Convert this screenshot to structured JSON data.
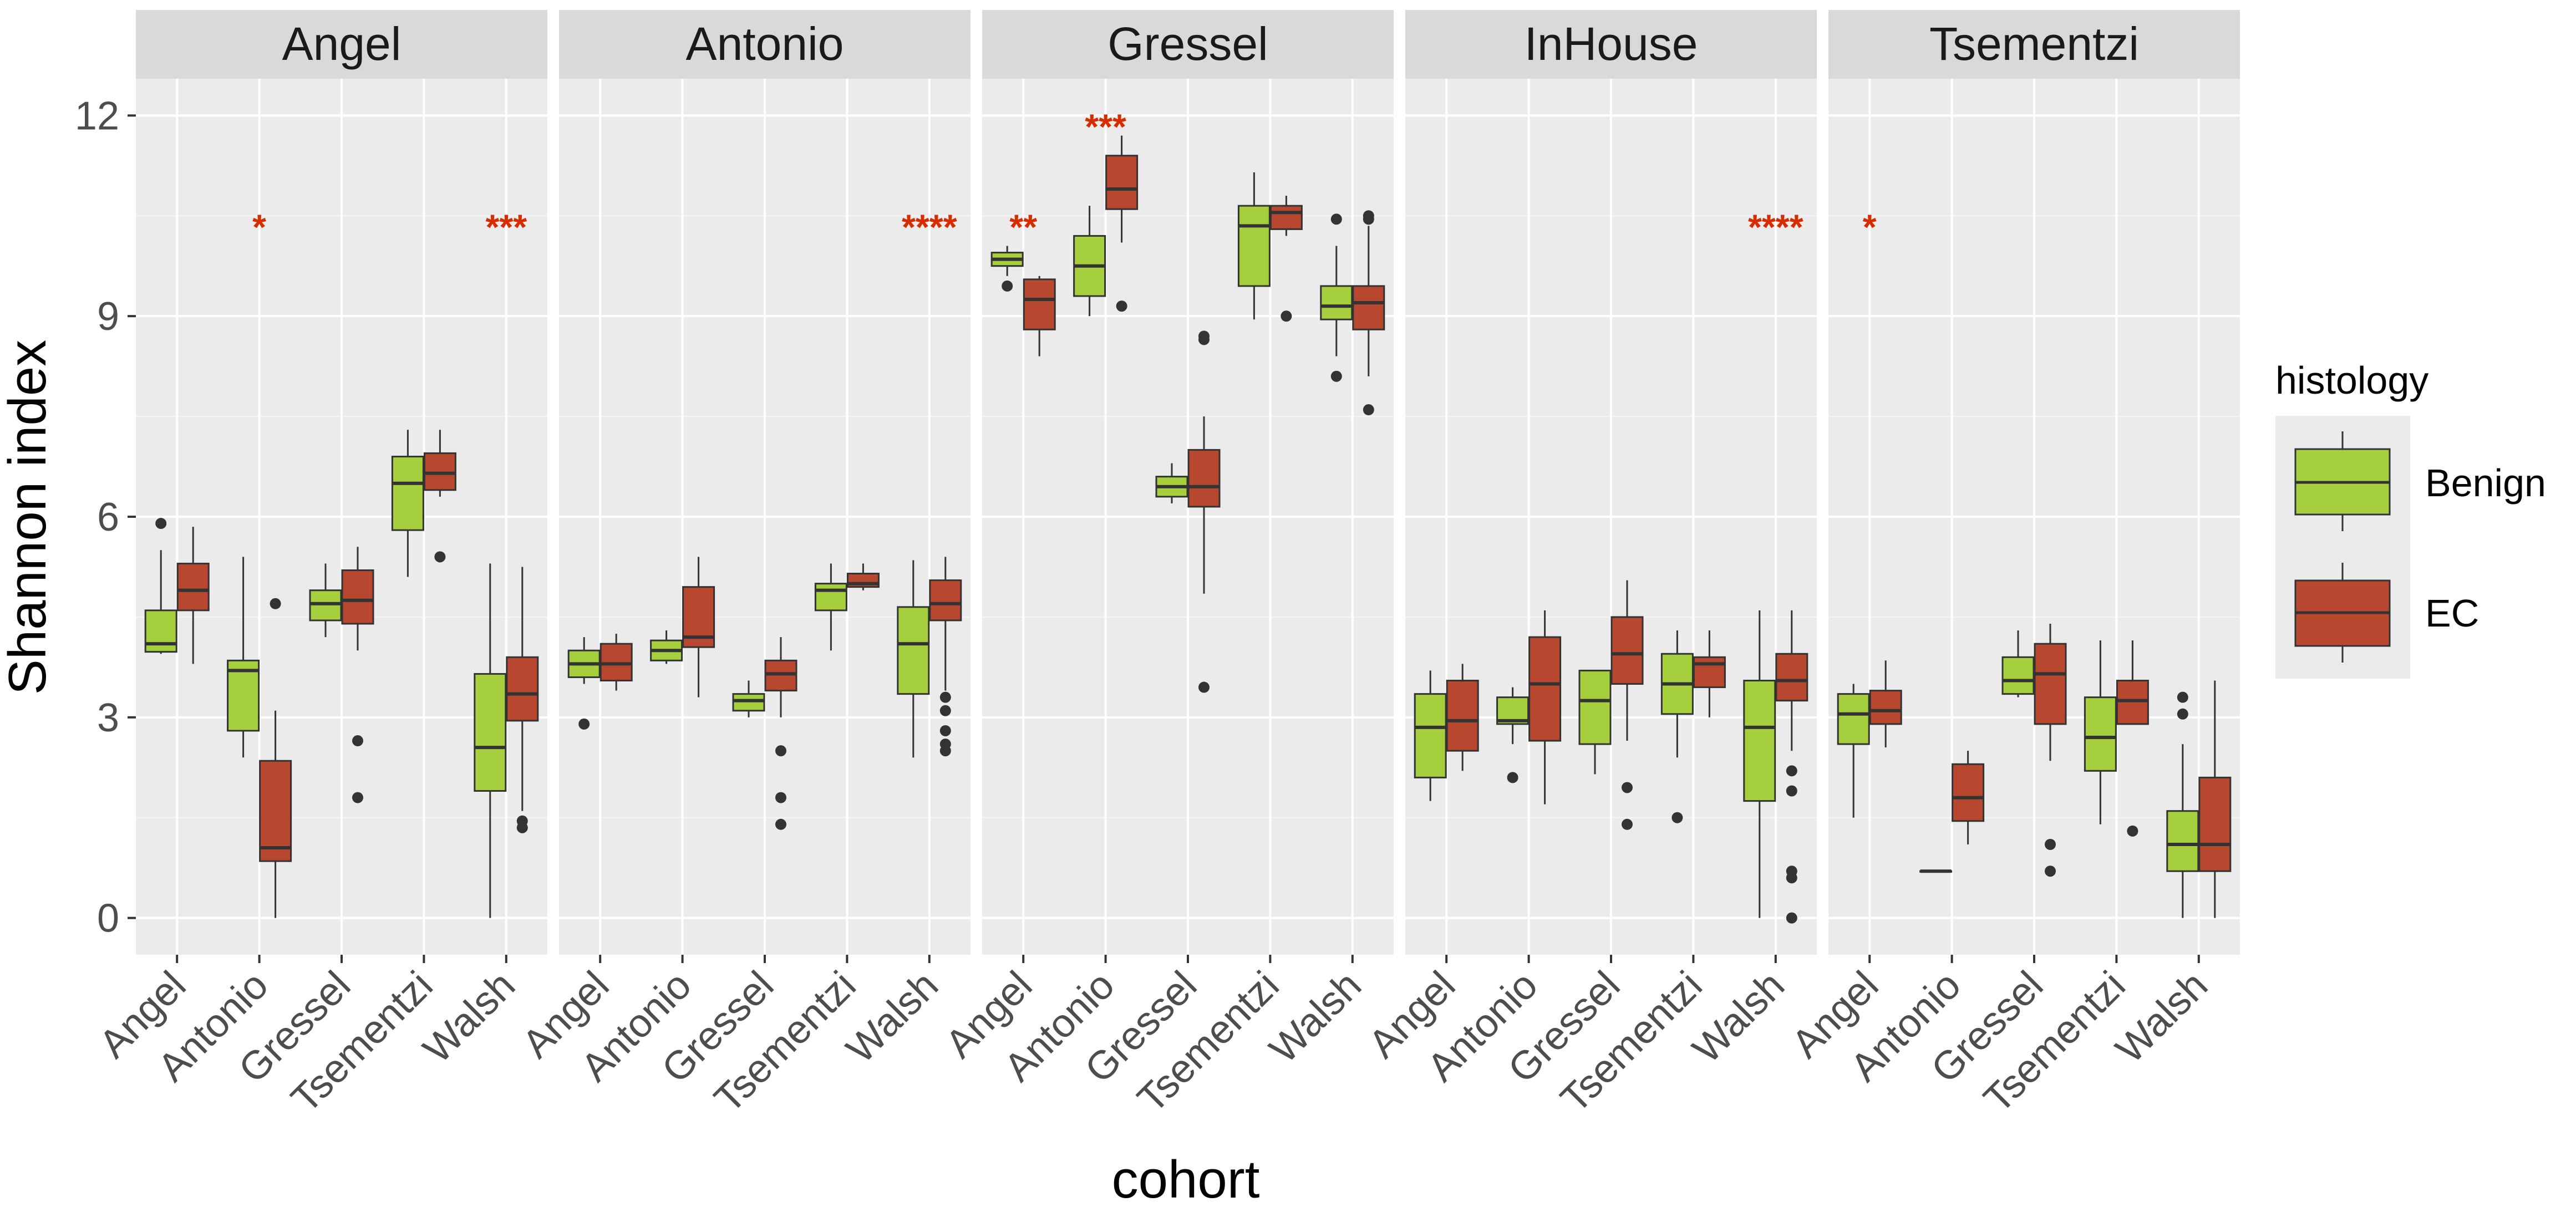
{
  "chart_data": {
    "type": "boxplot",
    "xlabel": "cohort",
    "ylabel": "Shannon index",
    "ylim": [
      -0.55,
      12.55
    ],
    "yticks": [
      0,
      3,
      6,
      9,
      12
    ],
    "grid": true,
    "legend": {
      "title": "histology",
      "position": "right",
      "entries": [
        {
          "name": "Benign",
          "color": "#a6cf3d"
        },
        {
          "name": "EC",
          "color": "#b8472f"
        }
      ]
    },
    "significance_color": "#d62d00",
    "categories": [
      "Angel",
      "Antonio",
      "Gressel",
      "Tsementzi",
      "Walsh"
    ],
    "panels": [
      {
        "title": "Angel",
        "groups": [
          {
            "cohort": "Angel",
            "sig": "",
            "benign": {
              "min": 3.95,
              "q1": 3.98,
              "median": 4.1,
              "q3": 4.6,
              "max": 5.5,
              "outliers": [
                5.9
              ]
            },
            "ec": {
              "min": 3.8,
              "q1": 4.6,
              "median": 4.9,
              "q3": 5.3,
              "max": 5.85,
              "outliers": []
            }
          },
          {
            "cohort": "Antonio",
            "sig": "*",
            "benign": {
              "min": 2.4,
              "q1": 2.8,
              "median": 3.7,
              "q3": 3.85,
              "max": 5.4,
              "outliers": []
            },
            "ec": {
              "min": 0.0,
              "q1": 0.85,
              "median": 1.05,
              "q3": 2.35,
              "max": 3.1,
              "outliers": [
                4.7
              ]
            }
          },
          {
            "cohort": "Gressel",
            "sig": "",
            "benign": {
              "min": 4.2,
              "q1": 4.45,
              "median": 4.7,
              "q3": 4.9,
              "max": 5.3,
              "outliers": []
            },
            "ec": {
              "min": 4.0,
              "q1": 4.4,
              "median": 4.75,
              "q3": 5.2,
              "max": 5.55,
              "outliers": [
                2.65,
                1.8
              ]
            }
          },
          {
            "cohort": "Tsementzi",
            "sig": "",
            "benign": {
              "min": 5.1,
              "q1": 5.8,
              "median": 6.5,
              "q3": 6.9,
              "max": 7.3,
              "outliers": []
            },
            "ec": {
              "min": 6.3,
              "q1": 6.4,
              "median": 6.65,
              "q3": 6.95,
              "max": 7.3,
              "outliers": [
                5.4
              ]
            }
          },
          {
            "cohort": "Walsh",
            "sig": "***",
            "benign": {
              "min": 0.0,
              "q1": 1.9,
              "median": 2.55,
              "q3": 3.65,
              "max": 5.3,
              "outliers": []
            },
            "ec": {
              "min": 1.6,
              "q1": 2.95,
              "median": 3.35,
              "q3": 3.9,
              "max": 5.25,
              "outliers": [
                1.45,
                1.35
              ]
            }
          }
        ]
      },
      {
        "title": "Antonio",
        "groups": [
          {
            "cohort": "Angel",
            "sig": "",
            "benign": {
              "min": 3.5,
              "q1": 3.6,
              "median": 3.8,
              "q3": 4.0,
              "max": 4.2,
              "outliers": [
                2.9
              ]
            },
            "ec": {
              "min": 3.4,
              "q1": 3.55,
              "median": 3.8,
              "q3": 4.1,
              "max": 4.25,
              "outliers": []
            }
          },
          {
            "cohort": "Antonio",
            "sig": "",
            "benign": {
              "min": 3.8,
              "q1": 3.85,
              "median": 4.0,
              "q3": 4.15,
              "max": 4.3,
              "outliers": []
            },
            "ec": {
              "min": 3.3,
              "q1": 4.05,
              "median": 4.2,
              "q3": 4.95,
              "max": 5.4,
              "outliers": []
            }
          },
          {
            "cohort": "Gressel",
            "sig": "",
            "benign": {
              "min": 3.0,
              "q1": 3.1,
              "median": 3.25,
              "q3": 3.35,
              "max": 3.55,
              "outliers": []
            },
            "ec": {
              "min": 3.0,
              "q1": 3.4,
              "median": 3.65,
              "q3": 3.85,
              "max": 4.2,
              "outliers": [
                2.5,
                1.8,
                1.4
              ]
            }
          },
          {
            "cohort": "Tsementzi",
            "sig": "",
            "benign": {
              "min": 4.0,
              "q1": 4.6,
              "median": 4.9,
              "q3": 5.0,
              "max": 5.3,
              "outliers": []
            },
            "ec": {
              "min": 4.9,
              "q1": 4.95,
              "median": 5.0,
              "q3": 5.15,
              "max": 5.3,
              "outliers": []
            }
          },
          {
            "cohort": "Walsh",
            "sig": "****",
            "benign": {
              "min": 2.4,
              "q1": 3.35,
              "median": 4.1,
              "q3": 4.65,
              "max": 5.35,
              "outliers": []
            },
            "ec": {
              "min": 3.4,
              "q1": 4.45,
              "median": 4.7,
              "q3": 5.05,
              "max": 5.4,
              "outliers": [
                3.3,
                3.1,
                2.8,
                2.6,
                2.5
              ]
            }
          }
        ]
      },
      {
        "title": "Gressel",
        "groups": [
          {
            "cohort": "Angel",
            "sig": "**",
            "benign": {
              "min": 9.6,
              "q1": 9.75,
              "median": 9.85,
              "q3": 9.95,
              "max": 10.05,
              "outliers": [
                9.45
              ]
            },
            "ec": {
              "min": 8.4,
              "q1": 8.8,
              "median": 9.25,
              "q3": 9.55,
              "max": 9.6,
              "outliers": []
            }
          },
          {
            "cohort": "Antonio",
            "sig": "***",
            "benign": {
              "min": 9.0,
              "q1": 9.3,
              "median": 9.75,
              "q3": 10.2,
              "max": 10.65,
              "outliers": []
            },
            "ec": {
              "min": 10.1,
              "q1": 10.6,
              "median": 10.9,
              "q3": 11.4,
              "max": 11.7,
              "outliers": [
                9.15
              ]
            }
          },
          {
            "cohort": "Gressel",
            "sig": "",
            "benign": {
              "min": 6.2,
              "q1": 6.3,
              "median": 6.45,
              "q3": 6.6,
              "max": 6.8,
              "outliers": []
            },
            "ec": {
              "min": 4.85,
              "q1": 6.15,
              "median": 6.45,
              "q3": 7.0,
              "max": 7.5,
              "outliers": [
                8.7,
                8.65,
                3.45
              ]
            }
          },
          {
            "cohort": "Tsementzi",
            "sig": "",
            "benign": {
              "min": 8.95,
              "q1": 9.45,
              "median": 10.35,
              "q3": 10.65,
              "max": 11.15,
              "outliers": []
            },
            "ec": {
              "min": 10.2,
              "q1": 10.3,
              "median": 10.55,
              "q3": 10.65,
              "max": 10.8,
              "outliers": [
                9.0
              ]
            }
          },
          {
            "cohort": "Walsh",
            "sig": "",
            "benign": {
              "min": 8.4,
              "q1": 8.95,
              "median": 9.15,
              "q3": 9.45,
              "max": 10.05,
              "outliers": [
                10.45,
                8.1
              ]
            },
            "ec": {
              "min": 8.1,
              "q1": 8.8,
              "median": 9.2,
              "q3": 9.45,
              "max": 10.35,
              "outliers": [
                10.5,
                10.45,
                7.6
              ]
            }
          }
        ]
      },
      {
        "title": "InHouse",
        "groups": [
          {
            "cohort": "Angel",
            "sig": "",
            "benign": {
              "min": 1.75,
              "q1": 2.1,
              "median": 2.85,
              "q3": 3.35,
              "max": 3.7,
              "outliers": []
            },
            "ec": {
              "min": 2.2,
              "q1": 2.5,
              "median": 2.95,
              "q3": 3.55,
              "max": 3.8,
              "outliers": []
            }
          },
          {
            "cohort": "Antonio",
            "sig": "",
            "benign": {
              "min": 2.6,
              "q1": 2.9,
              "median": 2.95,
              "q3": 3.3,
              "max": 3.45,
              "outliers": [
                2.1
              ]
            },
            "ec": {
              "min": 1.7,
              "q1": 2.65,
              "median": 3.5,
              "q3": 4.2,
              "max": 4.6,
              "outliers": []
            }
          },
          {
            "cohort": "Gressel",
            "sig": "",
            "benign": {
              "min": 2.15,
              "q1": 2.6,
              "median": 3.25,
              "q3": 3.7,
              "max": 3.7,
              "outliers": []
            },
            "ec": {
              "min": 2.65,
              "q1": 3.5,
              "median": 3.95,
              "q3": 4.5,
              "max": 5.05,
              "outliers": [
                1.95,
                1.4
              ]
            }
          },
          {
            "cohort": "Tsementzi",
            "sig": "",
            "benign": {
              "min": 2.4,
              "q1": 3.05,
              "median": 3.5,
              "q3": 3.95,
              "max": 4.3,
              "outliers": [
                1.5
              ]
            },
            "ec": {
              "min": 3.0,
              "q1": 3.45,
              "median": 3.8,
              "q3": 3.9,
              "max": 4.3,
              "outliers": []
            }
          },
          {
            "cohort": "Walsh",
            "sig": "****",
            "benign": {
              "min": 0.0,
              "q1": 1.75,
              "median": 2.85,
              "q3": 3.55,
              "max": 4.6,
              "outliers": []
            },
            "ec": {
              "min": 2.5,
              "q1": 3.25,
              "median": 3.55,
              "q3": 3.95,
              "max": 4.6,
              "outliers": [
                2.2,
                1.9,
                0.7,
                0.6,
                0.0
              ]
            }
          }
        ]
      },
      {
        "title": "Tsementzi",
        "groups": [
          {
            "cohort": "Angel",
            "sig": "*",
            "benign": {
              "min": 1.5,
              "q1": 2.6,
              "median": 3.05,
              "q3": 3.35,
              "max": 3.5,
              "outliers": []
            },
            "ec": {
              "min": 2.55,
              "q1": 2.9,
              "median": 3.1,
              "q3": 3.4,
              "max": 3.85,
              "outliers": []
            }
          },
          {
            "cohort": "Antonio",
            "sig": "",
            "benign": {
              "min": 0.7,
              "q1": 0.7,
              "median": 0.7,
              "q3": 0.7,
              "max": 0.7,
              "outliers": []
            },
            "ec": {
              "min": 1.1,
              "q1": 1.45,
              "median": 1.8,
              "q3": 2.3,
              "max": 2.5,
              "outliers": []
            }
          },
          {
            "cohort": "Gressel",
            "sig": "",
            "benign": {
              "min": 3.3,
              "q1": 3.35,
              "median": 3.55,
              "q3": 3.9,
              "max": 4.3,
              "outliers": []
            },
            "ec": {
              "min": 2.35,
              "q1": 2.9,
              "median": 3.65,
              "q3": 4.1,
              "max": 4.4,
              "outliers": [
                1.1,
                0.7
              ]
            }
          },
          {
            "cohort": "Tsementzi",
            "sig": "",
            "benign": {
              "min": 1.4,
              "q1": 2.2,
              "median": 2.7,
              "q3": 3.3,
              "max": 4.15,
              "outliers": []
            },
            "ec": {
              "min": 2.9,
              "q1": 2.9,
              "median": 3.25,
              "q3": 3.55,
              "max": 4.15,
              "outliers": [
                1.3
              ]
            }
          },
          {
            "cohort": "Walsh",
            "sig": "",
            "benign": {
              "min": 0.0,
              "q1": 0.7,
              "median": 1.1,
              "q3": 1.6,
              "max": 2.6,
              "outliers": [
                3.3,
                3.05
              ]
            },
            "ec": {
              "min": 0.0,
              "q1": 0.7,
              "median": 1.1,
              "q3": 2.1,
              "max": 3.55,
              "outliers": []
            }
          }
        ]
      }
    ]
  }
}
